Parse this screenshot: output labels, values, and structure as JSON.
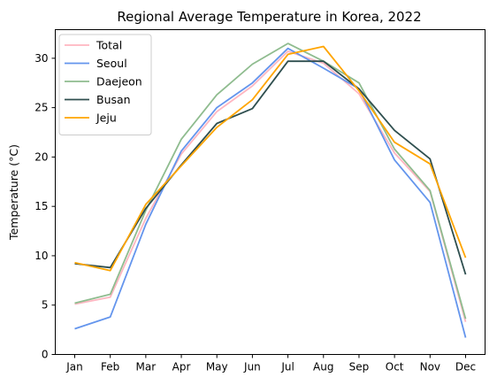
{
  "chart_data": {
    "type": "line",
    "title": "Regional Average Temperature in Korea, 2022",
    "xlabel": "",
    "ylabel": "Temperature (°C)",
    "categories": [
      "Jan",
      "Feb",
      "Mar",
      "Apr",
      "May",
      "Jun",
      "Jul",
      "Aug",
      "Sep",
      "Oct",
      "Nov",
      "Dec"
    ],
    "yticks": [
      0,
      5,
      10,
      15,
      20,
      25,
      30
    ],
    "ylim": [
      0,
      32.9
    ],
    "grid": false,
    "legend_position": "top-left",
    "series": [
      {
        "name": "Total",
        "color": "#ffb6c1",
        "values": [
          5.1,
          5.8,
          13.8,
          20.3,
          24.6,
          27.2,
          30.7,
          29.5,
          26.4,
          20.4,
          16.5,
          3.3
        ]
      },
      {
        "name": "Seoul",
        "color": "#6495ed",
        "values": [
          2.6,
          3.8,
          13.2,
          20.6,
          25.0,
          27.5,
          31.0,
          29.0,
          26.9,
          19.7,
          15.4,
          1.7
        ]
      },
      {
        "name": "Daejeon",
        "color": "#8fbc8f",
        "values": [
          5.2,
          6.1,
          14.6,
          21.8,
          26.3,
          29.4,
          31.5,
          29.7,
          27.5,
          20.8,
          16.6,
          3.6
        ]
      },
      {
        "name": "Busan",
        "color": "#2f4f4f",
        "values": [
          9.2,
          8.8,
          14.8,
          19.2,
          23.4,
          24.9,
          29.7,
          29.7,
          26.9,
          22.7,
          19.8,
          8.1
        ]
      },
      {
        "name": "Jeju",
        "color": "#ffa500",
        "values": [
          9.3,
          8.5,
          15.2,
          19.1,
          23.0,
          25.8,
          30.4,
          31.2,
          26.7,
          21.5,
          19.3,
          9.8
        ]
      }
    ]
  }
}
